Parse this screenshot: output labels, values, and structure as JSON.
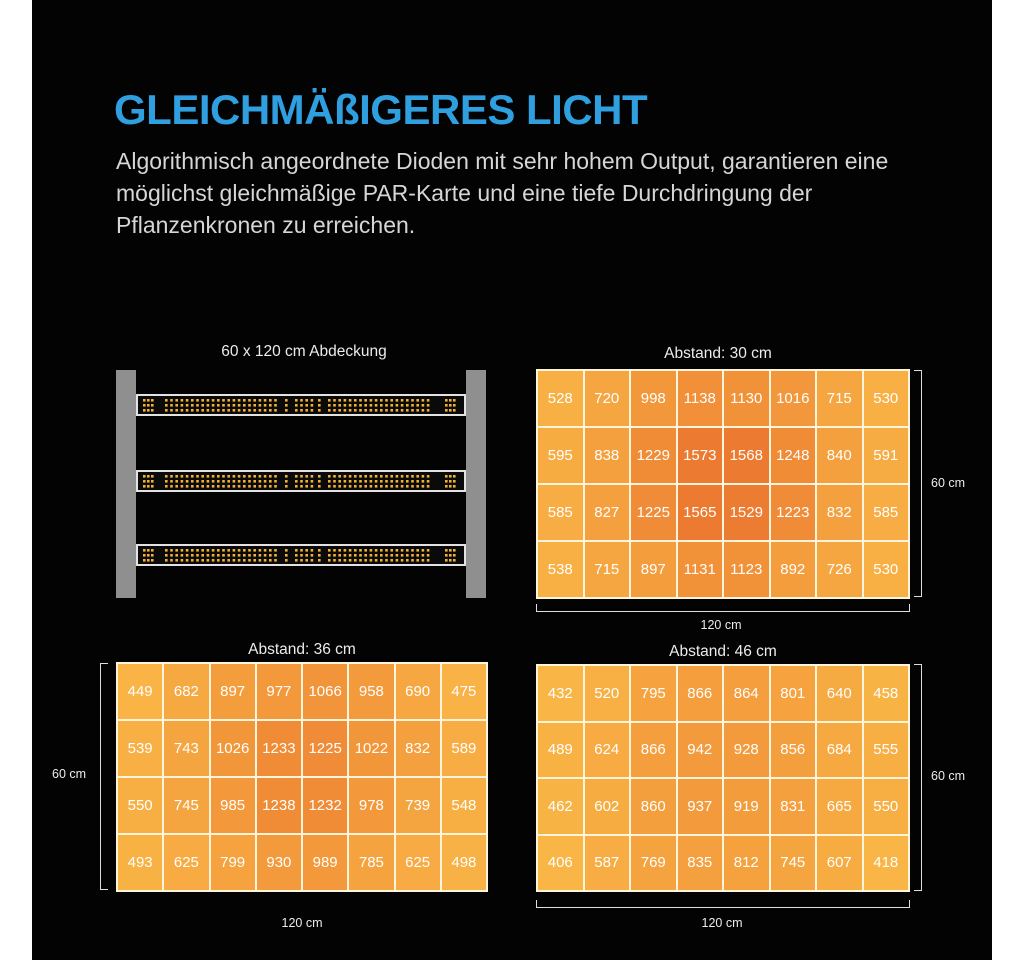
{
  "header": {
    "title": "GLEICHMÄßIGERES LICHT",
    "description": "Algorithmisch angeordnete Dioden mit sehr hohem Output, garantieren eine möglichst gleichmäßige PAR-Karte und eine tiefe Durchdringung der Pflanzenkronen zu erreichen."
  },
  "fixture": {
    "label": "60 x 120 cm Abdeckung",
    "bar_count": 3
  },
  "colors": {
    "background": "#030303",
    "title": "#2f9fe0",
    "grid_line": "#fff4dc",
    "post": "#8f8f8f",
    "led": "#f4b030",
    "scale_low": "#f9b646",
    "scale_high": "#ec7a30"
  },
  "chart_data": [
    {
      "type": "heatmap",
      "title": "Abstand: 30 cm",
      "xlabel": "120 cm",
      "ylabel": "60 cm",
      "rows": [
        [
          "528",
          "720",
          "998",
          "1138",
          "1130",
          "1016",
          "715",
          "530"
        ],
        [
          "595",
          "838",
          "1229",
          "1573",
          "1568",
          "1248",
          "840",
          "591"
        ],
        [
          "585",
          "827",
          "1225",
          "1565",
          "1529",
          "1223",
          "832",
          "585"
        ],
        [
          "538",
          "715",
          "897",
          "1131",
          "1123",
          "892",
          "726",
          "530"
        ]
      ]
    },
    {
      "type": "heatmap",
      "title": "Abstand: 36 cm",
      "xlabel": "120 cm",
      "ylabel": "60 cm",
      "rows": [
        [
          "449",
          "682",
          "897",
          "977",
          "1066",
          "958",
          "690",
          "475"
        ],
        [
          "539",
          "743",
          "1026",
          "1233",
          "1225",
          "1022",
          "832",
          "589"
        ],
        [
          "550",
          "745",
          "985",
          "1238",
          "1232",
          "978",
          "739",
          "548"
        ],
        [
          "493",
          "625",
          "799",
          "930",
          "989",
          "785",
          "625",
          "498"
        ]
      ]
    },
    {
      "type": "heatmap",
      "title": "Abstand: 46 cm",
      "xlabel": "120 cm",
      "ylabel": "60 cm",
      "rows": [
        [
          "432",
          "520",
          "795",
          "866",
          "864",
          "801",
          "640",
          "458"
        ],
        [
          "489",
          "624",
          "866",
          "942",
          "928",
          "856",
          "684",
          "555"
        ],
        [
          "462",
          "602",
          "860",
          "937",
          "919",
          "831",
          "665",
          "550"
        ],
        [
          "406",
          "587",
          "769",
          "835",
          "812",
          "745",
          "607",
          "418"
        ]
      ]
    }
  ]
}
